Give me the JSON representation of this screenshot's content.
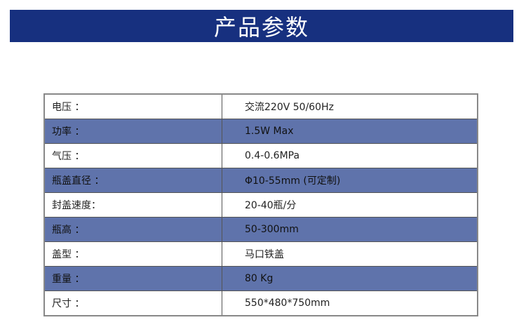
{
  "title": "产品参数",
  "colors": {
    "banner": "#17307f",
    "alt_row": "#5f73ab"
  },
  "specs": [
    {
      "label": "电压 ：",
      "value": "交流220V 50/60Hz"
    },
    {
      "label": "功率 ：",
      "value": "1.5W Max"
    },
    {
      "label": "气压 ：",
      "value": "0.4-0.6MPa"
    },
    {
      "label": "瓶盖直径 ：",
      "value": "Φ10-55mm (可定制)"
    },
    {
      "label": "封盖速度：",
      "value": "20-40瓶/分"
    },
    {
      "label": "瓶高 ：",
      "value": "50-300mm"
    },
    {
      "label": "盖型 ：",
      "value": "马口铁盖"
    },
    {
      "label": "重量 ：",
      "value": "80 Kg"
    },
    {
      "label": "尺寸 ：",
      "value": "550*480*750mm"
    }
  ]
}
